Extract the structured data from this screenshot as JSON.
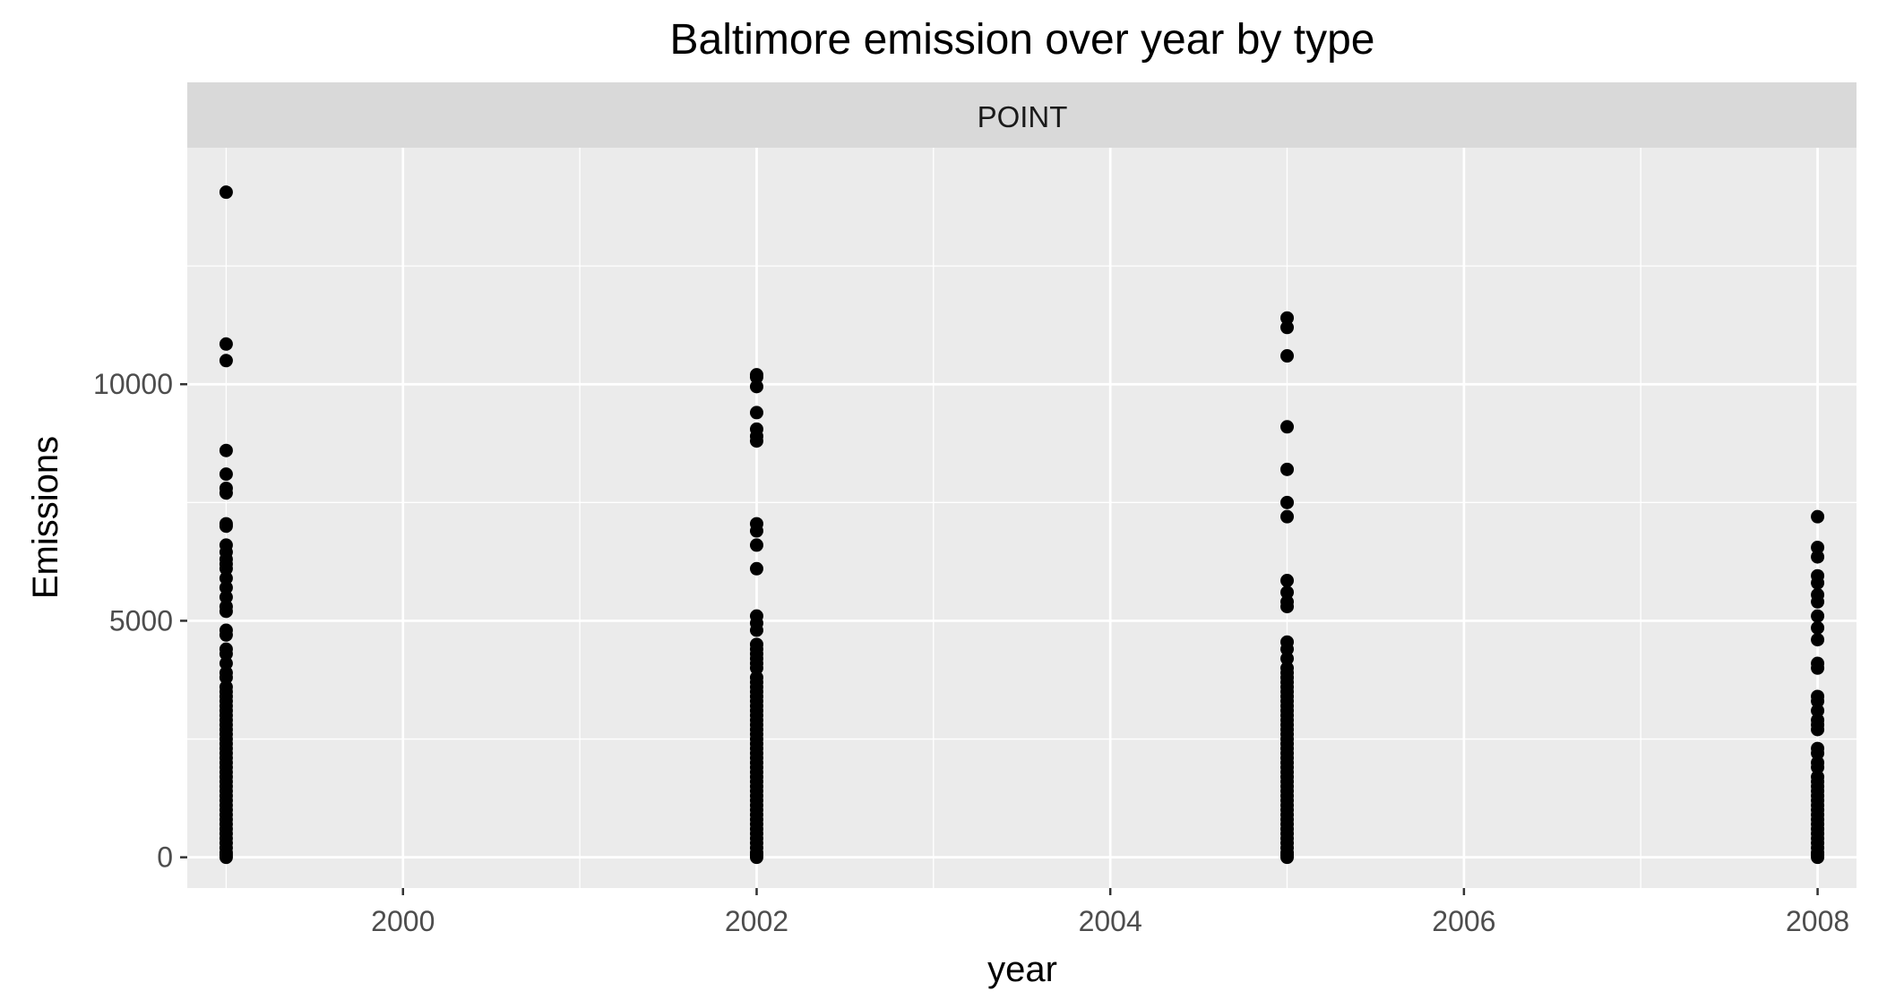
{
  "chart_data": {
    "type": "scatter",
    "title": "Baltimore emission over year by type",
    "facet_label": "POINT",
    "xlabel": "year",
    "ylabel": "Emissions",
    "xlim": [
      1998.78,
      2008.22
    ],
    "ylim": [
      -650,
      15000
    ],
    "x_ticks": [
      2000,
      2002,
      2004,
      2006,
      2008
    ],
    "x_tick_labels": [
      "2000",
      "2002",
      "2004",
      "2006",
      "2008"
    ],
    "y_ticks": [
      0,
      5000,
      10000
    ],
    "y_tick_labels": [
      "0",
      "5000",
      "10000"
    ],
    "x_minor_ticks": [
      1999,
      2001,
      2003,
      2005,
      2007
    ],
    "y_minor_ticks": [
      2500,
      7500,
      12500
    ],
    "grid": true,
    "legend": "none",
    "colors": {
      "panel_background": "#ebebeb",
      "strip_background": "#d9d9d9",
      "grid": "#ffffff",
      "point": "#000000",
      "axis_text": "#4d4d4d",
      "title_text": "#000000",
      "strip_text": "#1a1a1a"
    },
    "series": [
      {
        "x": 1999,
        "y": [
          14060,
          10850,
          10500,
          8600,
          8100,
          7800,
          7700,
          7050,
          7000,
          6600,
          6450,
          6300,
          6200,
          6100,
          5900,
          5700,
          5500,
          5300,
          5200,
          4800,
          4700,
          4400,
          4300,
          4100,
          3900,
          3800,
          3600,
          3500,
          3400,
          3300,
          3200,
          3100,
          3000,
          2900,
          2800,
          2700,
          2600,
          2500,
          2400,
          2300,
          2200,
          2100,
          2000,
          1900,
          1800,
          1700,
          1600,
          1500,
          1400,
          1300,
          1200,
          1100,
          1000,
          900,
          800,
          700,
          600,
          500,
          400,
          300,
          200,
          100,
          50,
          0
        ]
      },
      {
        "x": 2002,
        "y": [
          10200,
          10150,
          9950,
          9400,
          9050,
          8900,
          8800,
          7050,
          6900,
          6600,
          6100,
          5100,
          4950,
          4800,
          4500,
          4400,
          4300,
          4200,
          4100,
          4000,
          3800,
          3700,
          3600,
          3500,
          3400,
          3300,
          3200,
          3100,
          3000,
          2900,
          2800,
          2700,
          2600,
          2500,
          2400,
          2300,
          2200,
          2100,
          2000,
          1900,
          1800,
          1700,
          1600,
          1500,
          1400,
          1300,
          1200,
          1100,
          1000,
          900,
          800,
          700,
          600,
          500,
          400,
          300,
          200,
          100,
          50,
          0
        ]
      },
      {
        "x": 2005,
        "y": [
          11400,
          11200,
          10600,
          9100,
          8200,
          7500,
          7200,
          5850,
          5600,
          5400,
          5300,
          4550,
          4400,
          4200,
          4000,
          3900,
          3800,
          3700,
          3600,
          3500,
          3400,
          3300,
          3200,
          3100,
          3000,
          2900,
          2800,
          2700,
          2600,
          2500,
          2400,
          2300,
          2200,
          2100,
          2000,
          1900,
          1800,
          1700,
          1600,
          1500,
          1400,
          1300,
          1200,
          1100,
          1000,
          900,
          800,
          700,
          600,
          500,
          400,
          300,
          200,
          100,
          50,
          0
        ]
      },
      {
        "x": 2008,
        "y": [
          7200,
          6550,
          6350,
          5950,
          5800,
          5550,
          5400,
          5100,
          4850,
          4600,
          4100,
          4000,
          3400,
          3300,
          3100,
          2900,
          2800,
          2700,
          2300,
          2200,
          2000,
          1900,
          1700,
          1600,
          1500,
          1400,
          1300,
          1200,
          1100,
          1000,
          900,
          800,
          700,
          600,
          500,
          400,
          300,
          200,
          100,
          50,
          0
        ]
      }
    ]
  }
}
